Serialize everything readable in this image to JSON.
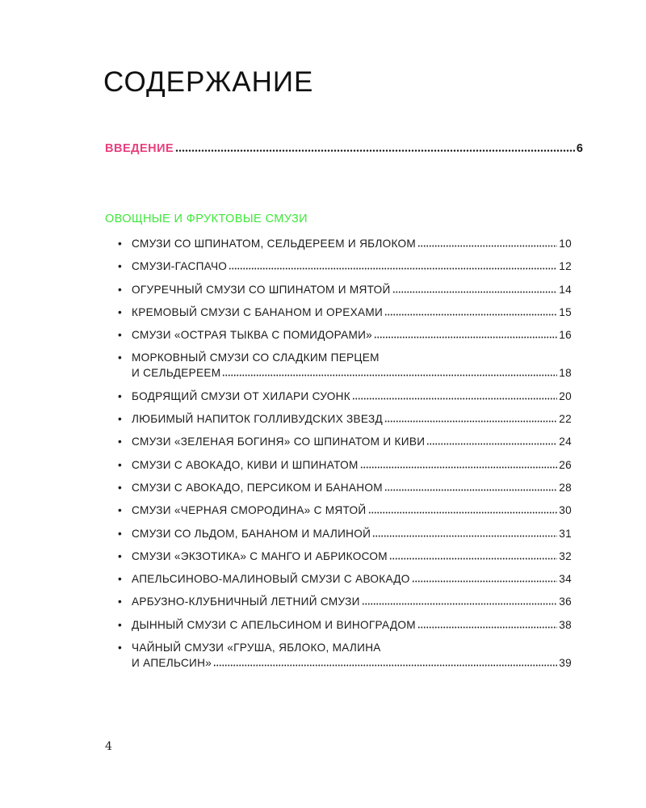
{
  "title": "СОДЕРЖАНИЕ",
  "intro": {
    "label": "ВВЕДЕНИЕ",
    "page": "6",
    "color": "#e8407f"
  },
  "section": {
    "heading": "ОВОЩНЫЕ И ФРУКТОВЫЕ СМУЗИ",
    "color": "#3ee83a"
  },
  "items": [
    {
      "lines": [
        "СМУЗИ СО ШПИНАТОМ, СЕЛЬДЕРЕЕМ И ЯБЛОКОМ"
      ],
      "page": "10"
    },
    {
      "lines": [
        "СМУЗИ-ГАСПАЧО"
      ],
      "page": "12"
    },
    {
      "lines": [
        "ОГУРЕЧНЫЙ СМУЗИ СО ШПИНАТОМ И МЯТОЙ"
      ],
      "page": "14"
    },
    {
      "lines": [
        "КРЕМОВЫЙ СМУЗИ С БАНАНОМ И ОРЕХАМИ"
      ],
      "page": "15"
    },
    {
      "lines": [
        "СМУЗИ «ОСТРАЯ ТЫКВА С ПОМИДОРАМИ»"
      ],
      "page": "16"
    },
    {
      "lines": [
        "МОРКОВНЫЙ СМУЗИ СО СЛАДКИМ ПЕРЦЕМ",
        "И СЕЛЬДЕРЕЕМ"
      ],
      "page": "18"
    },
    {
      "lines": [
        "БОДРЯЩИЙ СМУЗИ ОТ ХИЛАРИ СУОНК"
      ],
      "page": "20"
    },
    {
      "lines": [
        "ЛЮБИМЫЙ НАПИТОК ГОЛЛИВУДСКИХ ЗВЕЗД"
      ],
      "page": "22"
    },
    {
      "lines": [
        "СМУЗИ «ЗЕЛЕНАЯ БОГИНЯ» СО ШПИНАТОМ И КИВИ"
      ],
      "page": "24"
    },
    {
      "lines": [
        "СМУЗИ С АВОКАДО, КИВИ И ШПИНАТОМ"
      ],
      "page": "26"
    },
    {
      "lines": [
        "СМУЗИ С АВОКАДО, ПЕРСИКОМ И БАНАНОМ"
      ],
      "page": "28"
    },
    {
      "lines": [
        "СМУЗИ «ЧЕРНАЯ СМОРОДИНА» С МЯТОЙ"
      ],
      "page": "30"
    },
    {
      "lines": [
        "СМУЗИ СО ЛЬДОМ, БАНАНОМ И МАЛИНОЙ"
      ],
      "page": "31"
    },
    {
      "lines": [
        "СМУЗИ «ЭКЗОТИКА» С МАНГО И АБРИКОСОМ"
      ],
      "page": "32"
    },
    {
      "lines": [
        "АПЕЛЬСИНОВО-МАЛИНОВЫЙ СМУЗИ С АВОКАДО"
      ],
      "page": "34"
    },
    {
      "lines": [
        "АРБУЗНО-КЛУБНИЧНЫЙ ЛЕТНИЙ СМУЗИ"
      ],
      "page": "36"
    },
    {
      "lines": [
        "ДЫННЫЙ СМУЗИ С АПЕЛЬСИНОМ И ВИНОГРАДОМ"
      ],
      "page": "38"
    },
    {
      "lines": [
        "ЧАЙНЫЙ СМУЗИ «ГРУША, ЯБЛОКО, МАЛИНА",
        "И АПЕЛЬСИН»"
      ],
      "page": "39"
    }
  ],
  "bullet": "•",
  "page_number": "4"
}
